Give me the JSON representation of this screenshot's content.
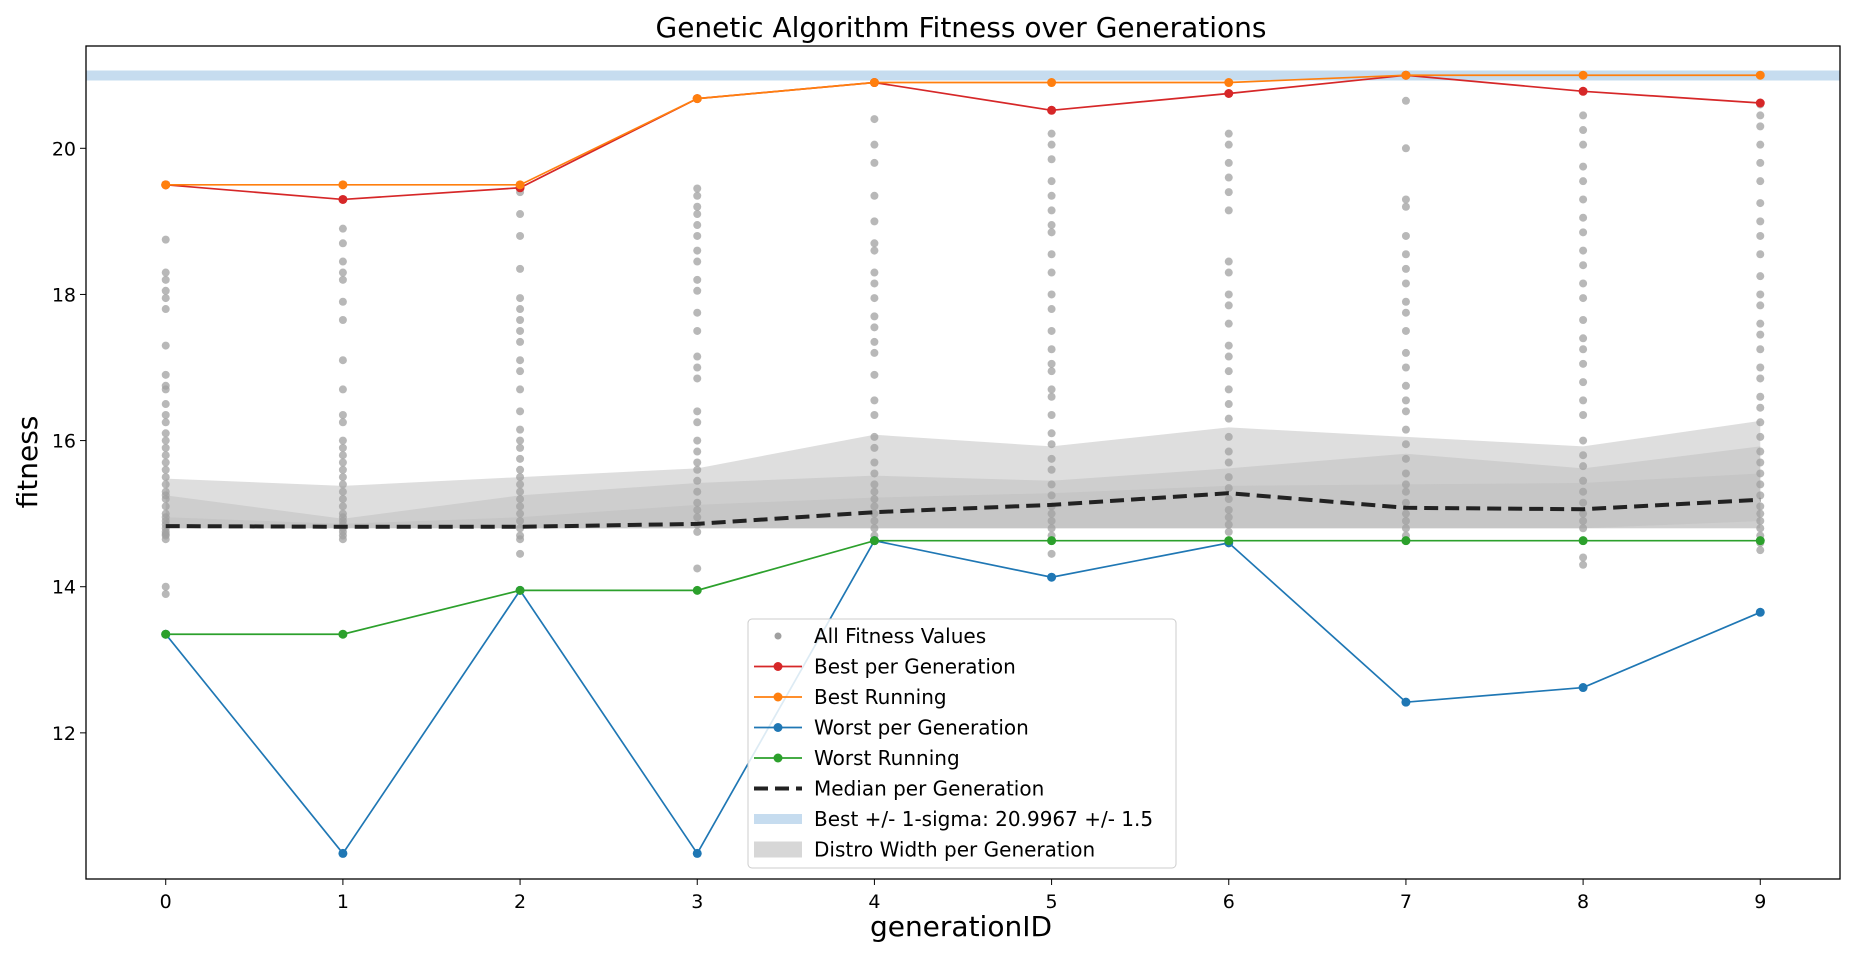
{
  "chart_data": {
    "type": "line",
    "title": "Genetic Algorithm Fitness over Generations",
    "xlabel": "generationID",
    "ylabel": "fitness",
    "x": [
      0,
      1,
      2,
      3,
      4,
      5,
      6,
      7,
      8,
      9
    ],
    "xlim": [
      -0.45,
      9.45
    ],
    "ylim": [
      10.0,
      21.4
    ],
    "xticks": [
      0,
      1,
      2,
      3,
      4,
      5,
      6,
      7,
      8,
      9
    ],
    "yticks": [
      12,
      14,
      16,
      18,
      20
    ],
    "grid": false,
    "legend_position": "lower-center",
    "series": [
      {
        "name": "Best per Generation",
        "color": "#d62728",
        "values": [
          19.5,
          19.3,
          19.46,
          20.68,
          20.9,
          20.52,
          20.75,
          21.0,
          20.78,
          20.62
        ]
      },
      {
        "name": "Best Running",
        "color": "#ff7f0e",
        "values": [
          19.5,
          19.5,
          19.5,
          20.68,
          20.9,
          20.9,
          20.9,
          21.0,
          21.0,
          21.0
        ]
      },
      {
        "name": "Worst per Generation",
        "color": "#1f77b4",
        "values": [
          13.35,
          10.35,
          13.95,
          10.35,
          14.63,
          14.13,
          14.6,
          12.42,
          12.62,
          13.65
        ]
      },
      {
        "name": "Worst Running",
        "color": "#2ca02c",
        "values": [
          13.35,
          13.35,
          13.95,
          13.95,
          14.63,
          14.63,
          14.63,
          14.63,
          14.63,
          14.63
        ]
      },
      {
        "name": "Median per Generation",
        "color": "#222222",
        "style": "dashed",
        "values": [
          14.83,
          14.82,
          14.82,
          14.86,
          15.02,
          15.12,
          15.28,
          15.08,
          15.06,
          15.19
        ]
      }
    ],
    "best_band": {
      "name": "Best +/- 1-sigma: 20.9967 +/- 1.5",
      "color": "#c6dcef",
      "y": 20.9967
    },
    "distro_band": {
      "name": "Distro Width per Generation",
      "color": "#bdbdbd",
      "outer_upper": [
        15.48,
        15.38,
        15.5,
        15.62,
        16.08,
        15.92,
        16.18,
        16.05,
        15.92,
        16.27
      ],
      "outer_lower": [
        14.8,
        14.8,
        14.8,
        14.8,
        14.8,
        14.8,
        14.8,
        14.8,
        14.8,
        14.8
      ],
      "mid_upper": [
        15.25,
        14.93,
        15.25,
        15.42,
        15.52,
        15.45,
        15.62,
        15.82,
        15.62,
        15.92
      ],
      "mid_lower": [
        14.8,
        14.8,
        14.8,
        14.8,
        14.8,
        14.8,
        14.8,
        14.8,
        14.8,
        14.8
      ],
      "inner_upper": [
        14.95,
        14.86,
        14.95,
        15.12,
        15.22,
        15.28,
        15.38,
        15.4,
        15.42,
        15.55
      ],
      "inner_lower": [
        14.8,
        14.8,
        14.8,
        14.8,
        14.8,
        14.8,
        14.8,
        14.8,
        14.8,
        14.9
      ]
    },
    "all_fitness": {
      "name": "All Fitness Values",
      "color": "#a0a0a0",
      "values": [
        [
          13.9,
          14.0,
          14.65,
          14.7,
          14.72,
          14.75,
          14.8,
          14.85,
          14.9,
          14.95,
          15.0,
          15.1,
          15.2,
          15.25,
          15.3,
          15.4,
          15.5,
          15.6,
          15.7,
          15.8,
          15.9,
          16.0,
          16.1,
          16.25,
          16.35,
          16.5,
          16.7,
          16.75,
          16.9,
          17.3,
          17.8,
          17.95,
          18.05,
          18.2,
          18.3,
          18.75
        ],
        [
          14.65,
          14.7,
          14.75,
          14.8,
          14.85,
          14.9,
          14.95,
          15.0,
          15.1,
          15.2,
          15.3,
          15.4,
          15.5,
          15.6,
          15.7,
          15.8,
          15.9,
          16.0,
          16.25,
          16.35,
          16.7,
          17.1,
          17.65,
          17.9,
          18.2,
          18.3,
          18.45,
          18.7,
          18.9
        ],
        [
          14.45,
          14.65,
          14.7,
          14.8,
          14.9,
          15.0,
          15.1,
          15.2,
          15.3,
          15.4,
          15.5,
          15.6,
          15.75,
          15.9,
          16.0,
          16.15,
          16.4,
          16.7,
          16.95,
          17.1,
          17.35,
          17.5,
          17.65,
          17.8,
          17.95,
          18.35,
          18.8,
          19.1,
          19.4
        ],
        [
          14.25,
          14.75,
          14.85,
          14.95,
          15.05,
          15.15,
          15.3,
          15.45,
          15.6,
          15.7,
          15.85,
          16.0,
          16.25,
          16.4,
          16.85,
          17.0,
          17.15,
          17.5,
          17.75,
          18.05,
          18.2,
          18.45,
          18.6,
          18.8,
          18.95,
          19.1,
          19.2,
          19.35,
          19.45
        ],
        [
          14.7,
          14.8,
          14.9,
          15.0,
          15.1,
          15.2,
          15.3,
          15.4,
          15.55,
          15.7,
          15.9,
          16.05,
          16.35,
          16.55,
          16.9,
          17.2,
          17.35,
          17.55,
          17.7,
          17.95,
          18.15,
          18.3,
          18.6,
          18.7,
          19.0,
          19.35,
          19.8,
          20.05,
          20.4
        ],
        [
          14.45,
          14.7,
          14.8,
          14.9,
          15.0,
          15.1,
          15.25,
          15.4,
          15.6,
          15.75,
          15.95,
          16.1,
          16.35,
          16.6,
          16.7,
          16.95,
          17.05,
          17.25,
          17.5,
          17.8,
          18.0,
          18.3,
          18.55,
          18.85,
          18.95,
          19.15,
          19.35,
          19.55,
          19.85,
          20.05,
          20.2
        ],
        [
          14.6,
          14.75,
          14.85,
          14.95,
          15.05,
          15.2,
          15.35,
          15.5,
          15.7,
          15.85,
          16.05,
          16.3,
          16.5,
          16.7,
          16.95,
          17.15,
          17.3,
          17.6,
          17.85,
          18.0,
          18.3,
          18.45,
          19.15,
          19.4,
          19.6,
          19.8,
          20.05,
          20.2
        ],
        [
          14.7,
          14.8,
          14.9,
          15.0,
          15.15,
          15.3,
          15.4,
          15.55,
          15.75,
          15.95,
          16.15,
          16.4,
          16.55,
          16.75,
          17.0,
          17.2,
          17.5,
          17.75,
          17.9,
          18.15,
          18.35,
          18.55,
          18.8,
          19.2,
          19.3,
          20.0,
          20.65
        ],
        [
          14.3,
          14.4,
          14.8,
          14.9,
          15.0,
          15.15,
          15.3,
          15.45,
          15.65,
          15.8,
          16.0,
          16.35,
          16.55,
          16.8,
          17.05,
          17.25,
          17.4,
          17.65,
          17.95,
          18.15,
          18.4,
          18.6,
          18.85,
          19.05,
          19.3,
          19.55,
          19.75,
          20.05,
          20.25,
          20.45
        ],
        [
          14.5,
          14.6,
          14.7,
          14.8,
          14.9,
          15.0,
          15.1,
          15.25,
          15.4,
          15.55,
          15.7,
          15.85,
          16.05,
          16.25,
          16.45,
          16.6,
          16.85,
          17.0,
          17.25,
          17.45,
          17.6,
          17.85,
          18.0,
          18.25,
          18.55,
          18.8,
          19.0,
          19.25,
          19.55,
          19.8,
          20.05,
          20.3,
          20.45,
          20.6
        ]
      ]
    }
  }
}
